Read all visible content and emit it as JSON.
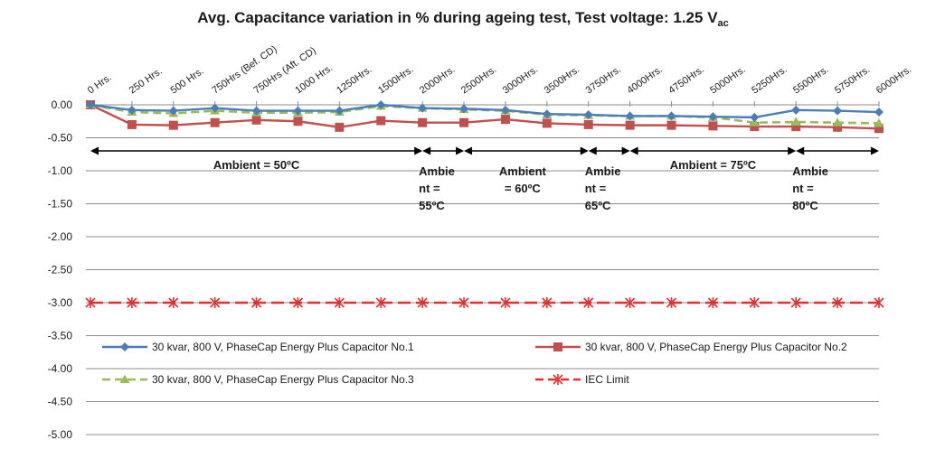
{
  "chart_data": {
    "type": "line",
    "title": "Avg. Capacitance variation in % during ageing test, Test voltage: 1.25 V",
    "title_subscript": "ac",
    "xlabel": "",
    "ylabel": "",
    "categories": [
      "0 Hrs.",
      "250 Hrs.",
      "500 Hrs.",
      "750Hrs (Bef. CD)",
      "750Hrs (Aft. CD)",
      "1000 Hrs.",
      "1250Hrs.",
      "1500Hrs.",
      "2000Hrs.",
      "2500Hrs.",
      "3000Hrs.",
      "3500Hrs.",
      "3750Hrs.",
      "4000Hrs.",
      "4750Hrs.",
      "5000Hrs.",
      "5250Hrs.",
      "5500Hrs.",
      "5750Hrs.",
      "6000Hrs."
    ],
    "ylim": [
      -5.0,
      0.0
    ],
    "yticks": [
      "0.00",
      "-0.50",
      "-1.00",
      "-1.50",
      "-2.00",
      "-2.50",
      "-3.00",
      "-3.50",
      "-4.00",
      "-4.50",
      "-5.00"
    ],
    "grid": true,
    "legend_position": "bottom",
    "series": [
      {
        "name": "30 kvar, 800 V, PhaseCap Energy Plus Capacitor No.1",
        "color": "#4a7ebb",
        "marker": "diamond",
        "dash": "solid",
        "values": [
          0.0,
          -0.08,
          -0.09,
          -0.05,
          -0.09,
          -0.09,
          -0.09,
          0.0,
          -0.05,
          -0.06,
          -0.08,
          -0.14,
          -0.15,
          -0.17,
          -0.17,
          -0.18,
          -0.19,
          -0.08,
          -0.09,
          -0.11
        ]
      },
      {
        "name": "30 kvar, 800 V, PhaseCap Energy Plus Capacitor No.2",
        "color": "#c0504d",
        "marker": "square",
        "dash": "solid",
        "values": [
          0.0,
          -0.3,
          -0.31,
          -0.27,
          -0.23,
          -0.25,
          -0.34,
          -0.24,
          -0.27,
          -0.27,
          -0.22,
          -0.28,
          -0.3,
          -0.31,
          -0.31,
          -0.32,
          -0.33,
          -0.33,
          -0.34,
          -0.36
        ]
      },
      {
        "name": "30 kvar, 800 V, PhaseCap Energy Plus Capacitor No.3",
        "color": "#9bbb59",
        "marker": "triangle",
        "dash": "dashed",
        "values": [
          0.0,
          -0.11,
          -0.13,
          -0.09,
          -0.12,
          -0.12,
          -0.11,
          -0.02,
          -0.05,
          -0.07,
          -0.09,
          -0.15,
          -0.16,
          -0.17,
          -0.17,
          -0.19,
          -0.27,
          -0.26,
          -0.27,
          -0.28
        ]
      },
      {
        "name": "IEC Limit",
        "color": "#e03030",
        "marker": "star",
        "dash": "dashed",
        "values": [
          -3.0,
          -3.0,
          -3.0,
          -3.0,
          -3.0,
          -3.0,
          -3.0,
          -3.0,
          -3.0,
          -3.0,
          -3.0,
          -3.0,
          -3.0,
          -3.0,
          -3.0,
          -3.0,
          -3.0,
          -3.0,
          -3.0,
          -3.0
        ]
      }
    ],
    "annotations": [
      {
        "lines": [
          "Ambient = 50ºC"
        ],
        "from": "0 Hrs.",
        "to": "2000Hrs."
      },
      {
        "lines": [
          "Ambie",
          "nt =",
          "55ºC"
        ],
        "from": "2000Hrs.",
        "to": "2500Hrs."
      },
      {
        "lines": [
          "Ambient",
          "= 60ºC"
        ],
        "from": "2500Hrs.",
        "to": "3750Hrs."
      },
      {
        "lines": [
          "Ambie",
          "nt =",
          "65ºC"
        ],
        "from": "3750Hrs.",
        "to": "4000Hrs."
      },
      {
        "lines": [
          "Ambient = 75ºC"
        ],
        "from": "4000Hrs.",
        "to": "5500Hrs."
      },
      {
        "lines": [
          "Ambie",
          "nt =",
          "80ºC"
        ],
        "from": "5500Hrs.",
        "to": "6000Hrs."
      }
    ]
  }
}
